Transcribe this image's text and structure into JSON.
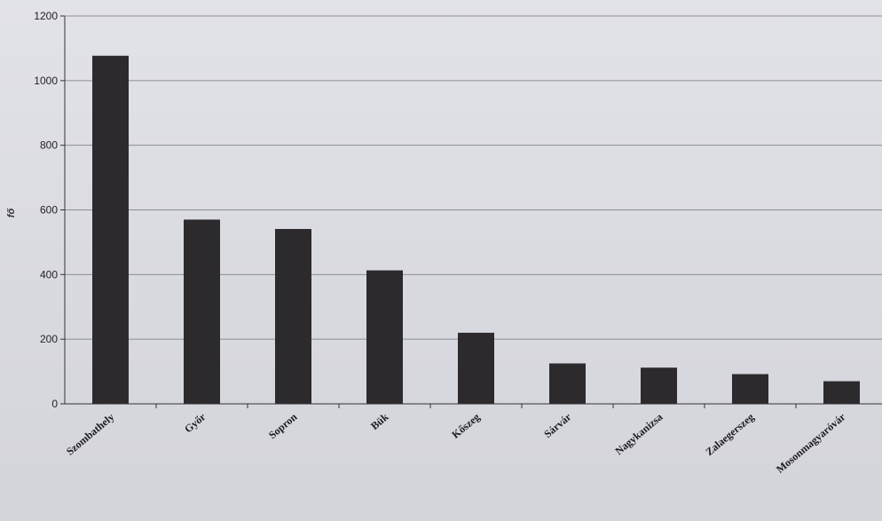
{
  "chart_data": {
    "type": "bar",
    "title": "",
    "xlabel": "",
    "ylabel": "fő",
    "categories": [
      "Szombathely",
      "Győr",
      "Sopron",
      "Bük",
      "Kőszeg",
      "Sárvár",
      "Nagykanizsa",
      "Zalaegerszeg",
      "Mosonmagyaróvár"
    ],
    "values": [
      1077,
      570,
      541,
      413,
      220,
      125,
      112,
      92,
      70
    ],
    "ylim": [
      0,
      1200
    ],
    "yticks": [
      0,
      200,
      400,
      600,
      800,
      1000,
      1200
    ],
    "grid": true,
    "bar_color": "#2c2a2c",
    "grid_color": "#8c8e96",
    "axis_color": "#333333"
  }
}
